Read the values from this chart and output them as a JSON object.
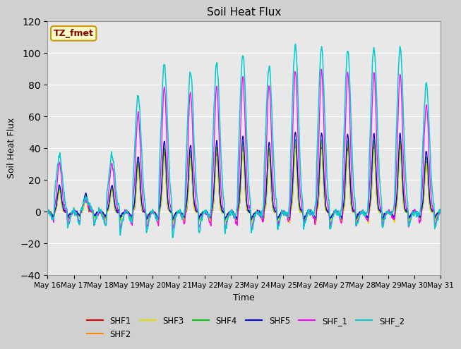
{
  "title": "Soil Heat Flux",
  "xlabel": "Time",
  "ylabel": "Soil Heat Flux",
  "ylim": [
    -40,
    120
  ],
  "background_color": "#e8e8e8",
  "annotation_text": "TZ_fmet",
  "annotation_bg": "#ffffcc",
  "annotation_border": "#cc9900",
  "annotation_text_color": "#880000",
  "series_colors": {
    "SHF1": "#dd0000",
    "SHF2": "#ff8800",
    "SHF3": "#dddd00",
    "SHF4": "#00cc00",
    "SHF5": "#0000dd",
    "SHF_1": "#ff00ff",
    "SHF_2": "#00cccc"
  },
  "xtick_labels": [
    "May 16",
    "May 17",
    "May 18",
    "May 19",
    "May 20",
    "May 21",
    "May 22",
    "May 23",
    "May 24",
    "May 25",
    "May 26",
    "May 27",
    "May 28",
    "May 29",
    "May 30",
    "May 31"
  ],
  "num_days": 15,
  "points_per_day": 144
}
